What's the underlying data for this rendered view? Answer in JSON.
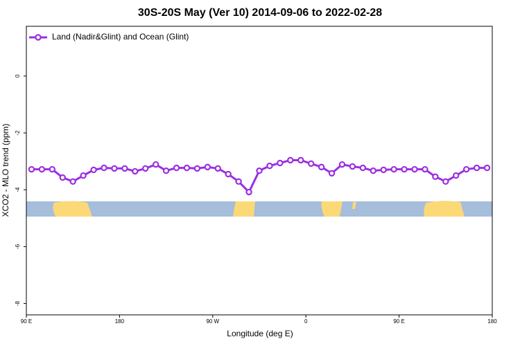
{
  "chart_data": {
    "type": "line",
    "title": "30S-20S May (Ver 10)   2014-09-06 to 2022-02-28",
    "xlabel": "Longitude (deg E)",
    "ylabel": "XCO2 - MLO trend (ppm)",
    "xlim": [
      90,
      540
    ],
    "ylim": [
      -8.4,
      1.75
    ],
    "xticks": [
      {
        "value": 90,
        "label": "90 E"
      },
      180,
      {
        "value": 270,
        "label": "90 W"
      },
      {
        "value": 360,
        "label": "0"
      },
      {
        "value": 450,
        "label": "90 E"
      },
      {
        "value": 540,
        "label": "180"
      }
    ],
    "yticks": [
      0,
      -2,
      -4,
      -6,
      -8
    ],
    "legend": "top-left",
    "x": [
      95,
      105,
      115,
      125,
      135,
      145,
      155,
      165,
      175,
      185,
      195,
      205,
      215,
      225,
      235,
      245,
      255,
      265,
      275,
      285,
      295,
      305,
      315,
      325,
      335,
      345,
      355,
      365,
      375,
      385,
      395,
      405,
      415,
      425,
      435,
      445,
      455,
      465,
      475,
      485,
      495,
      505,
      515,
      525,
      535
    ],
    "series": [
      {
        "name": "Land (Nadir&Glint) and Ocean (Glint)",
        "color": "#9b2fe0",
        "values": [
          -3.28,
          -3.28,
          -3.28,
          -3.57,
          -3.71,
          -3.5,
          -3.3,
          -3.23,
          -3.25,
          -3.25,
          -3.35,
          -3.25,
          -3.11,
          -3.33,
          -3.23,
          -3.23,
          -3.25,
          -3.2,
          -3.25,
          -3.45,
          -3.71,
          -4.08,
          -3.33,
          -3.16,
          -3.06,
          -2.96,
          -2.96,
          -3.08,
          -3.2,
          -3.42,
          -3.11,
          -3.18,
          -3.23,
          -3.33,
          -3.3,
          -3.28,
          -3.28,
          -3.28,
          -3.28,
          -3.54,
          -3.71,
          -3.5,
          -3.28,
          -3.23,
          -3.23
        ]
      }
    ]
  }
}
